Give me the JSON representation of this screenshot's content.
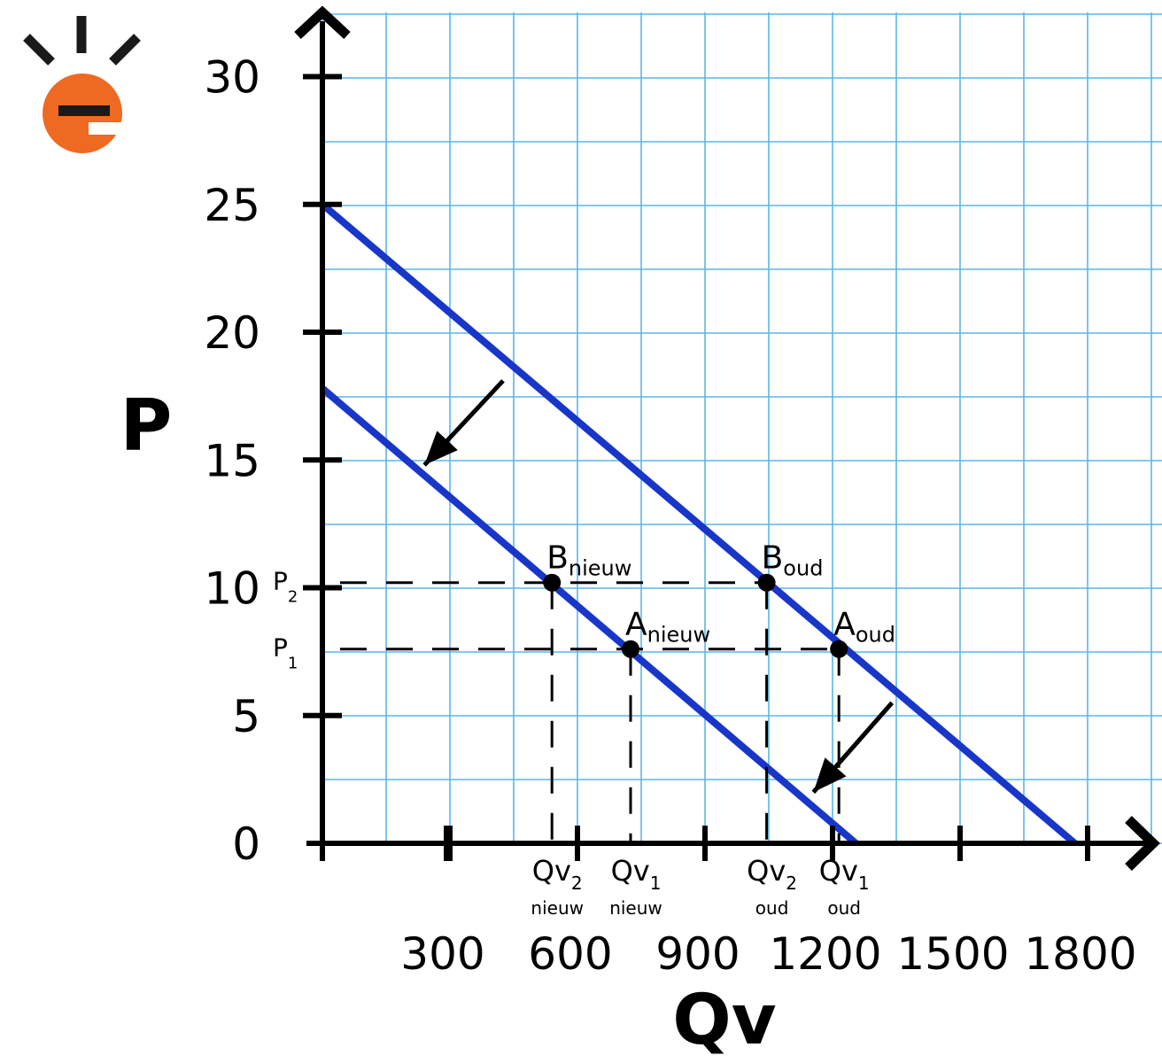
{
  "colors": {
    "grid": "#5bb5ea",
    "curve": "#1836c8",
    "axis": "#000000",
    "logo_orange": "#ee6a22",
    "logo_dark": "#1a1a1a"
  },
  "logo": {
    "name": "e-logo",
    "letter": "e"
  },
  "chart_data": {
    "type": "line",
    "title": "",
    "xlabel": "Qv",
    "ylabel": "P",
    "xlim": [
      0,
      1950
    ],
    "ylim": [
      0,
      32
    ],
    "grid": true,
    "x_ticks": [
      300,
      600,
      900,
      1200,
      1500,
      1800
    ],
    "y_ticks": [
      0,
      5,
      10,
      15,
      20,
      25,
      30
    ],
    "series": [
      {
        "name": "",
        "points": [
          [
            0,
            25
          ],
          [
            1770,
            0
          ]
        ]
      },
      {
        "name": "",
        "points": [
          [
            0,
            17.8
          ],
          [
            1255,
            0
          ]
        ]
      }
    ],
    "points": [
      {
        "main": "B",
        "sub": "nieuw",
        "x": 540,
        "y": 10.2
      },
      {
        "main": "A",
        "sub": "nieuw",
        "x": 725,
        "y": 7.6
      },
      {
        "main": "B",
        "sub": "oud",
        "x": 1045,
        "y": 10.2
      },
      {
        "main": "A",
        "sub": "oud",
        "x": 1215,
        "y": 7.6
      }
    ],
    "price_labels": [
      {
        "main": "P",
        "sub": "2",
        "y": 10.2
      },
      {
        "main": "P",
        "sub": "1",
        "y": 7.6
      }
    ],
    "quantity_labels": [
      {
        "main": "Qv",
        "sub": "2",
        "under": "nieuw",
        "x": 540
      },
      {
        "main": "Qv",
        "sub": "1",
        "under": "nieuw",
        "x": 725
      },
      {
        "main": "Qv",
        "sub": "2",
        "under": "oud",
        "x": 1045
      },
      {
        "main": "Qv",
        "sub": "1",
        "under": "oud",
        "x": 1215
      }
    ],
    "shift_arrows": [
      {
        "from": [
          425,
          18.1
        ],
        "to": [
          240,
          14.8
        ]
      },
      {
        "from": [
          1340,
          5.5
        ],
        "to": [
          1155,
          2.0
        ]
      }
    ]
  }
}
